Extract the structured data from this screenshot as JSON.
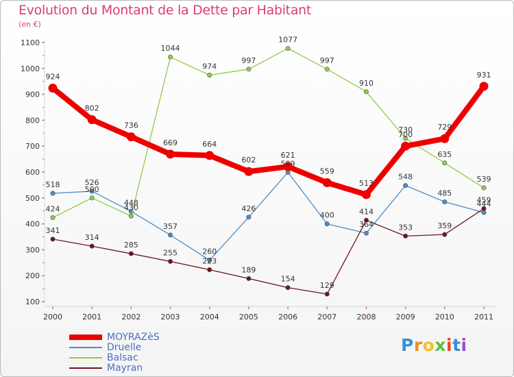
{
  "title": "Evolution du Montant de la Dette par Habitant",
  "subtitle": "(en €)",
  "logo": {
    "text": "Proxiti",
    "letter_colors": [
      "#3a8fd6",
      "#f08a1c",
      "#f0c22a",
      "#5cbf3a",
      "#e8462a",
      "#3a8fd6",
      "#9c50c8"
    ]
  },
  "chart_data": {
    "type": "line",
    "title": "Evolution du Montant de la Dette par Habitant",
    "subtitle": "(en €)",
    "xlabel": "",
    "ylabel": "",
    "x": [
      "2000",
      "2001",
      "2002",
      "2003",
      "2004",
      "2005",
      "2006",
      "2007",
      "2008",
      "2009",
      "2010",
      "2011"
    ],
    "ylim": [
      100,
      1100
    ],
    "yticks": [
      100,
      200,
      300,
      400,
      500,
      600,
      700,
      800,
      900,
      1000,
      1100
    ],
    "grid": false,
    "legend_position": "bottom-left",
    "series": [
      {
        "name": "MOYRAZèS",
        "color": "#ee0000",
        "emphasis": true,
        "values": [
          924,
          802,
          736,
          669,
          664,
          602,
          621,
          559,
          513,
          700,
          729,
          931
        ],
        "labels": [
          "924",
          "802",
          "736",
          "669",
          "664",
          "602",
          "621",
          "559",
          "513",
          "700",
          "729",
          "931"
        ]
      },
      {
        "name": "Druelle",
        "color": "#4a8cc7",
        "values": [
          518,
          526,
          448,
          357,
          260,
          426,
          599,
          400,
          364,
          548,
          485,
          444
        ],
        "labels": [
          "518",
          "526",
          "448",
          "357",
          "260",
          "426",
          "599",
          "400",
          "364",
          "548",
          "485",
          "444"
        ]
      },
      {
        "name": "Balsac",
        "color": "#8fcb45",
        "values": [
          424,
          500,
          430,
          1044,
          974,
          997,
          1077,
          997,
          910,
          730,
          635,
          539
        ],
        "labels": [
          "424",
          "500",
          "430",
          "1044",
          "974",
          "997",
          "1077",
          "997",
          "910",
          "730",
          "635",
          "539"
        ]
      },
      {
        "name": "Mayran",
        "color": "#6b1520",
        "values": [
          341,
          314,
          285,
          255,
          223,
          189,
          154,
          129,
          414,
          353,
          359,
          459
        ],
        "labels": [
          "341",
          "314",
          "285",
          "255",
          "223",
          "189",
          "154",
          "129",
          "414",
          "353",
          "359",
          "459"
        ]
      }
    ]
  }
}
